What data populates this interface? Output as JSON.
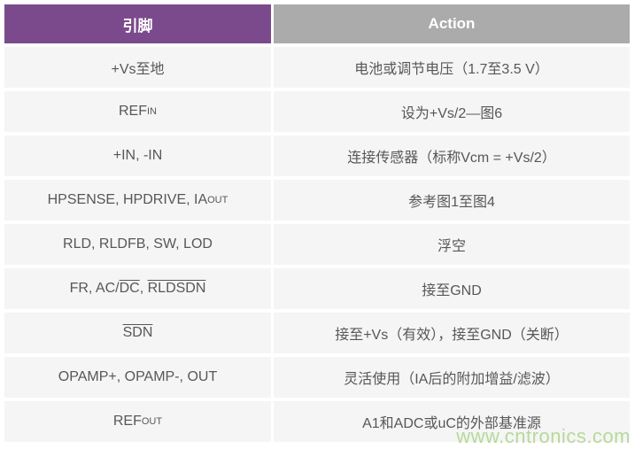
{
  "colors": {
    "header_pin_bg": "#7B4A8C",
    "header_action_bg": "#ABABAB",
    "row_bg": "#F5F5F5",
    "body_text": "#565759",
    "header_text": "#FFFFFF",
    "watermark_text_color": "#B7D99A"
  },
  "table": {
    "headers": [
      {
        "label": "引脚"
      },
      {
        "label": "Action"
      }
    ],
    "rows": [
      {
        "pin": [
          {
            "text": "+Vs至地"
          }
        ],
        "action": "电池或调节电压（1.7至3.5 V）"
      },
      {
        "pin": [
          {
            "text": "REF"
          },
          {
            "text": "IN",
            "style": "sub"
          }
        ],
        "action": "设为+Vs/2—图6"
      },
      {
        "pin": [
          {
            "text": "+IN, -IN"
          }
        ],
        "action": "连接传感器（标称Vcm = +Vs/2）"
      },
      {
        "pin": [
          {
            "text": "HPSENSE, HPDRIVE, IA"
          },
          {
            "text": "OUT",
            "style": "sub"
          }
        ],
        "action": "参考图1至图4"
      },
      {
        "pin": [
          {
            "text": "RLD, RLDFB, SW, LOD"
          }
        ],
        "action": "浮空"
      },
      {
        "pin": [
          {
            "text": "FR, AC/"
          },
          {
            "text": "DC",
            "style": "overline"
          },
          {
            "text": ", "
          },
          {
            "text": "RLDSDN",
            "style": "overline"
          }
        ],
        "action": "接至GND"
      },
      {
        "pin": [
          {
            "text": "SDN",
            "style": "overline"
          }
        ],
        "action": "接至+Vs（有效），接至GND（关断）"
      },
      {
        "pin": [
          {
            "text": "OPAMP+, OPAMP-, OUT"
          }
        ],
        "action": "灵活使用（IA后的附加增益/滤波）"
      },
      {
        "pin": [
          {
            "text": "REF"
          },
          {
            "text": "OUT",
            "style": "sub"
          }
        ],
        "action": "A1和ADC或uC的外部基准源"
      }
    ]
  },
  "watermark": {
    "text": "www.cntronics.com"
  },
  "chart_data": {
    "type": "table",
    "columns": [
      "引脚",
      "Action"
    ],
    "rows": [
      [
        "+Vs至地",
        "电池或调节电压（1.7至3.5 V）"
      ],
      [
        "REFIN",
        "设为+Vs/2—图6"
      ],
      [
        "+IN, -IN",
        "连接传感器（标称Vcm = +Vs/2）"
      ],
      [
        "HPSENSE, HPDRIVE, IAOUT",
        "参考图1至图4"
      ],
      [
        "RLD, RLDFB, SW, LOD",
        "浮空"
      ],
      [
        "FR, AC/DC, RLDSDN",
        "接至GND"
      ],
      [
        "SDN",
        "接至+Vs（有效），接至GND（关断）"
      ],
      [
        "OPAMP+, OPAMP-, OUT",
        "灵活使用（IA后的附加增益/滤波）"
      ],
      [
        "REFOUT",
        "A1和ADC或uC的外部基准源"
      ]
    ],
    "notes": "Overline marks (active-low) over DC, RLDSDN, SDN; IN/OUT rendered as subscripts"
  }
}
